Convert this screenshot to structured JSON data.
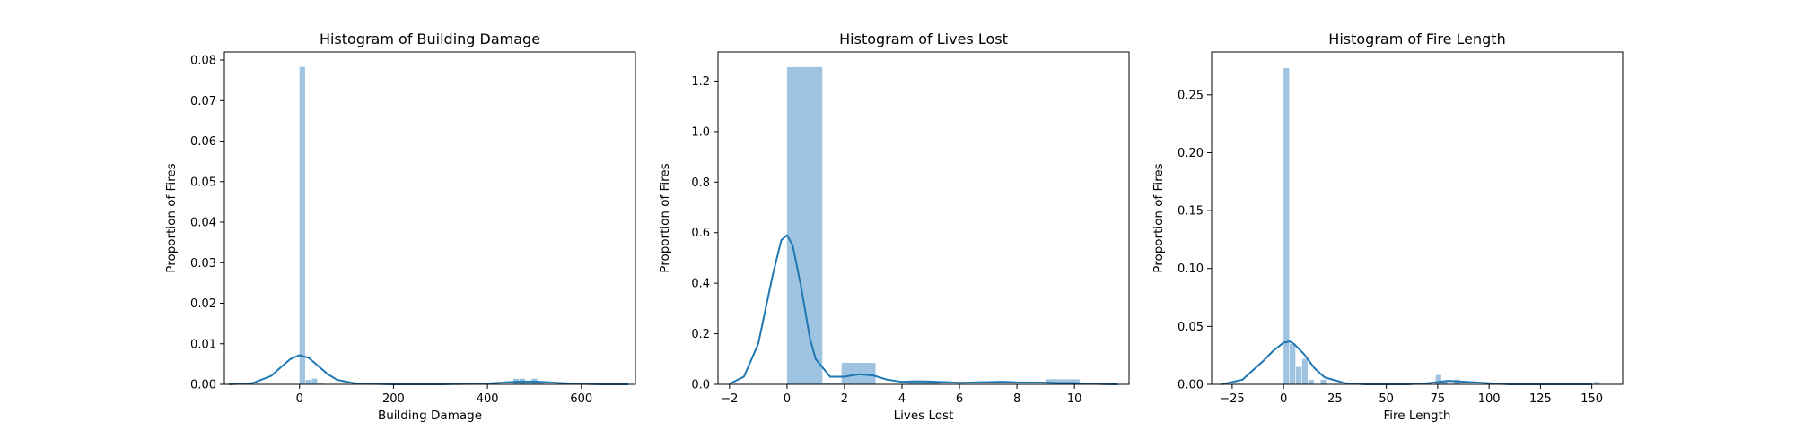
{
  "chart_data": [
    {
      "type": "bar",
      "title": "Histogram of Building Damage",
      "xlabel": "Building Damage",
      "ylabel": "Proportion of Fires",
      "xlim": [
        -160,
        715
      ],
      "ylim": [
        0,
        0.082
      ],
      "xticks": [
        0,
        200,
        400,
        600
      ],
      "yticks": [
        0.0,
        0.01,
        0.02,
        0.03,
        0.04,
        0.05,
        0.06,
        0.07,
        0.08
      ],
      "ytick_labels": [
        "0.00",
        "0.01",
        "0.02",
        "0.03",
        "0.04",
        "0.05",
        "0.06",
        "0.07",
        "0.08"
      ],
      "bars": [
        {
          "x0": 0,
          "x1": 13,
          "value": 0.0783
        },
        {
          "x0": 13,
          "x1": 26,
          "value": 0.0011
        },
        {
          "x0": 26,
          "x1": 39,
          "value": 0.0014
        },
        {
          "x0": 39,
          "x1": 52,
          "value": 0.0002
        },
        {
          "x0": 455,
          "x1": 468,
          "value": 0.0014
        },
        {
          "x0": 468,
          "x1": 481,
          "value": 0.0014
        },
        {
          "x0": 481,
          "x1": 494,
          "value": 0.0005
        },
        {
          "x0": 494,
          "x1": 507,
          "value": 0.0014
        },
        {
          "x0": 507,
          "x1": 520,
          "value": 0.0006
        }
      ],
      "kde": {
        "x": [
          -150,
          -100,
          -60,
          -40,
          -20,
          0,
          20,
          40,
          60,
          80,
          120,
          200,
          300,
          400,
          440,
          470,
          500,
          530,
          560,
          600,
          650,
          700
        ],
        "y": [
          0.0,
          0.0003,
          0.0021,
          0.0042,
          0.0062,
          0.0072,
          0.0065,
          0.0045,
          0.0025,
          0.0011,
          0.0002,
          0.0,
          0.0,
          0.0002,
          0.0005,
          0.0007,
          0.0007,
          0.0005,
          0.0003,
          0.0001,
          0.0,
          0.0
        ]
      },
      "bar_color": "#9ec4e2",
      "line_color": "#1f77b4"
    },
    {
      "type": "bar",
      "title": "Histogram of Lives Lost",
      "xlabel": "Lives Lost",
      "ylabel": "Proportion of Fires",
      "xlim": [
        -2.4,
        11.9
      ],
      "ylim": [
        0,
        1.315
      ],
      "xticks": [
        -2,
        0,
        2,
        4,
        6,
        8,
        10
      ],
      "xtick_labels": [
        "−2",
        "0",
        "2",
        "4",
        "6",
        "8",
        "10"
      ],
      "yticks": [
        0.0,
        0.2,
        0.4,
        0.6,
        0.8,
        1.0,
        1.2
      ],
      "ytick_labels": [
        "0.0",
        "0.2",
        "0.4",
        "0.6",
        "0.8",
        "1.0",
        "1.2"
      ],
      "bars": [
        {
          "x0": 0,
          "x1": 1.25,
          "value": 1.255
        },
        {
          "x0": 1.25,
          "x1": 1.9,
          "value": 0.005
        },
        {
          "x0": 1.9,
          "x1": 3.1,
          "value": 0.085
        },
        {
          "x0": 4.2,
          "x1": 5.3,
          "value": 0.01
        },
        {
          "x0": 9.0,
          "x1": 10.2,
          "value": 0.02
        }
      ],
      "kde": {
        "x": [
          -2.0,
          -1.5,
          -1.0,
          -0.5,
          -0.2,
          0.0,
          0.2,
          0.5,
          0.8,
          1.0,
          1.5,
          2.0,
          2.5,
          3.0,
          3.5,
          4.0,
          4.5,
          5.0,
          6.0,
          7.0,
          7.5,
          8.0,
          9.0,
          9.5,
          10.0,
          11.0,
          11.5
        ],
        "y": [
          0.002,
          0.03,
          0.16,
          0.43,
          0.57,
          0.59,
          0.55,
          0.38,
          0.18,
          0.1,
          0.03,
          0.03,
          0.04,
          0.035,
          0.018,
          0.01,
          0.012,
          0.011,
          0.006,
          0.009,
          0.01,
          0.008,
          0.007,
          0.005,
          0.005,
          0.001,
          0.0
        ]
      },
      "bar_color": "#9ec4e2",
      "line_color": "#1f77b4"
    },
    {
      "type": "bar",
      "title": "Histogram of Fire Length",
      "xlabel": "Fire Length",
      "ylabel": "Proportion of Fires",
      "xlim": [
        -35,
        165
      ],
      "ylim": [
        0,
        0.287
      ],
      "xticks": [
        -25,
        0,
        25,
        50,
        75,
        100,
        125,
        150
      ],
      "xtick_labels": [
        "−25",
        "0",
        "25",
        "50",
        "75",
        "100",
        "125",
        "150"
      ],
      "yticks": [
        0.0,
        0.05,
        0.1,
        0.15,
        0.2,
        0.25
      ],
      "ytick_labels": [
        "0.00",
        "0.05",
        "0.10",
        "0.15",
        "0.20",
        "0.25"
      ],
      "bars": [
        {
          "x0": 0,
          "x1": 3,
          "value": 0.273
        },
        {
          "x0": 3,
          "x1": 6,
          "value": 0.035
        },
        {
          "x0": 6,
          "x1": 9,
          "value": 0.015
        },
        {
          "x0": 9,
          "x1": 12,
          "value": 0.022
        },
        {
          "x0": 12,
          "x1": 15,
          "value": 0.004
        },
        {
          "x0": 18,
          "x1": 21,
          "value": 0.004
        },
        {
          "x0": 74,
          "x1": 77,
          "value": 0.008
        },
        {
          "x0": 77,
          "x1": 80,
          "value": 0.003
        },
        {
          "x0": 83,
          "x1": 86,
          "value": 0.004
        },
        {
          "x0": 151,
          "x1": 154,
          "value": 0.002
        }
      ],
      "kde": {
        "x": [
          -30,
          -20,
          -10,
          -5,
          0,
          3,
          5,
          10,
          15,
          20,
          30,
          40,
          50,
          60,
          70,
          80,
          90,
          100,
          110,
          120,
          150
        ],
        "y": [
          0.0,
          0.004,
          0.02,
          0.029,
          0.036,
          0.037,
          0.035,
          0.026,
          0.014,
          0.006,
          0.001,
          0.0,
          0.0,
          0.0,
          0.001,
          0.003,
          0.002,
          0.001,
          0.0,
          0.0,
          0.0
        ]
      },
      "bar_color": "#9ec4e2",
      "line_color": "#1f77b4"
    }
  ]
}
